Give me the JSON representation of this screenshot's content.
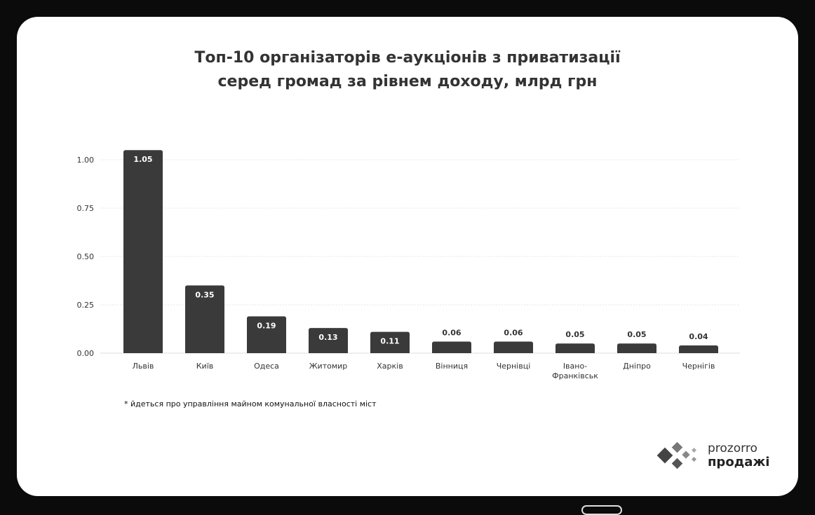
{
  "chart_data": {
    "type": "bar",
    "title": "Топ-10 організаторів е-аукціонів з приватизації серед громад за рівнем доходу, млрд грн",
    "title_lines": [
      "Топ-10 організаторів е-аукціонів з приватизації",
      "серед громад за рівнем доходу, млрд грн"
    ],
    "categories": [
      "Львів",
      "Київ",
      "Одеса",
      "Житомир",
      "Харків",
      "Вінниця",
      "Чернівці",
      "Івано-Франківськ",
      "Дніпро",
      "Чернігів"
    ],
    "category_lines": [
      [
        "Львів"
      ],
      [
        "Київ"
      ],
      [
        "Одеса"
      ],
      [
        "Житомир"
      ],
      [
        "Харків"
      ],
      [
        "Вінниця"
      ],
      [
        "Чернівці"
      ],
      [
        "Івано-",
        "Франківськ"
      ],
      [
        "Дніпро"
      ],
      [
        "Чернігів"
      ]
    ],
    "values": [
      1.05,
      0.35,
      0.19,
      0.13,
      0.11,
      0.06,
      0.06,
      0.05,
      0.05,
      0.04
    ],
    "labels": [
      "1.05",
      "0.35",
      "0.19",
      "0.13",
      "0.11",
      "0.06",
      "0.06",
      "0.05",
      "0.05",
      "0.04"
    ],
    "yticks": [
      "0.00",
      "0.25",
      "0.50",
      "0.75",
      "1.00"
    ],
    "ytick_values": [
      0,
      0.25,
      0.5,
      0.75,
      1.0
    ],
    "ylim": [
      0,
      1.05
    ],
    "xlabel": "",
    "ylabel": "",
    "grid": true,
    "bar_color": "#3a3a3a"
  },
  "footnote": "* йдеться про управління майном комунальної власності міст",
  "logo": {
    "line1": "prozorro",
    "line2": "продажі"
  }
}
